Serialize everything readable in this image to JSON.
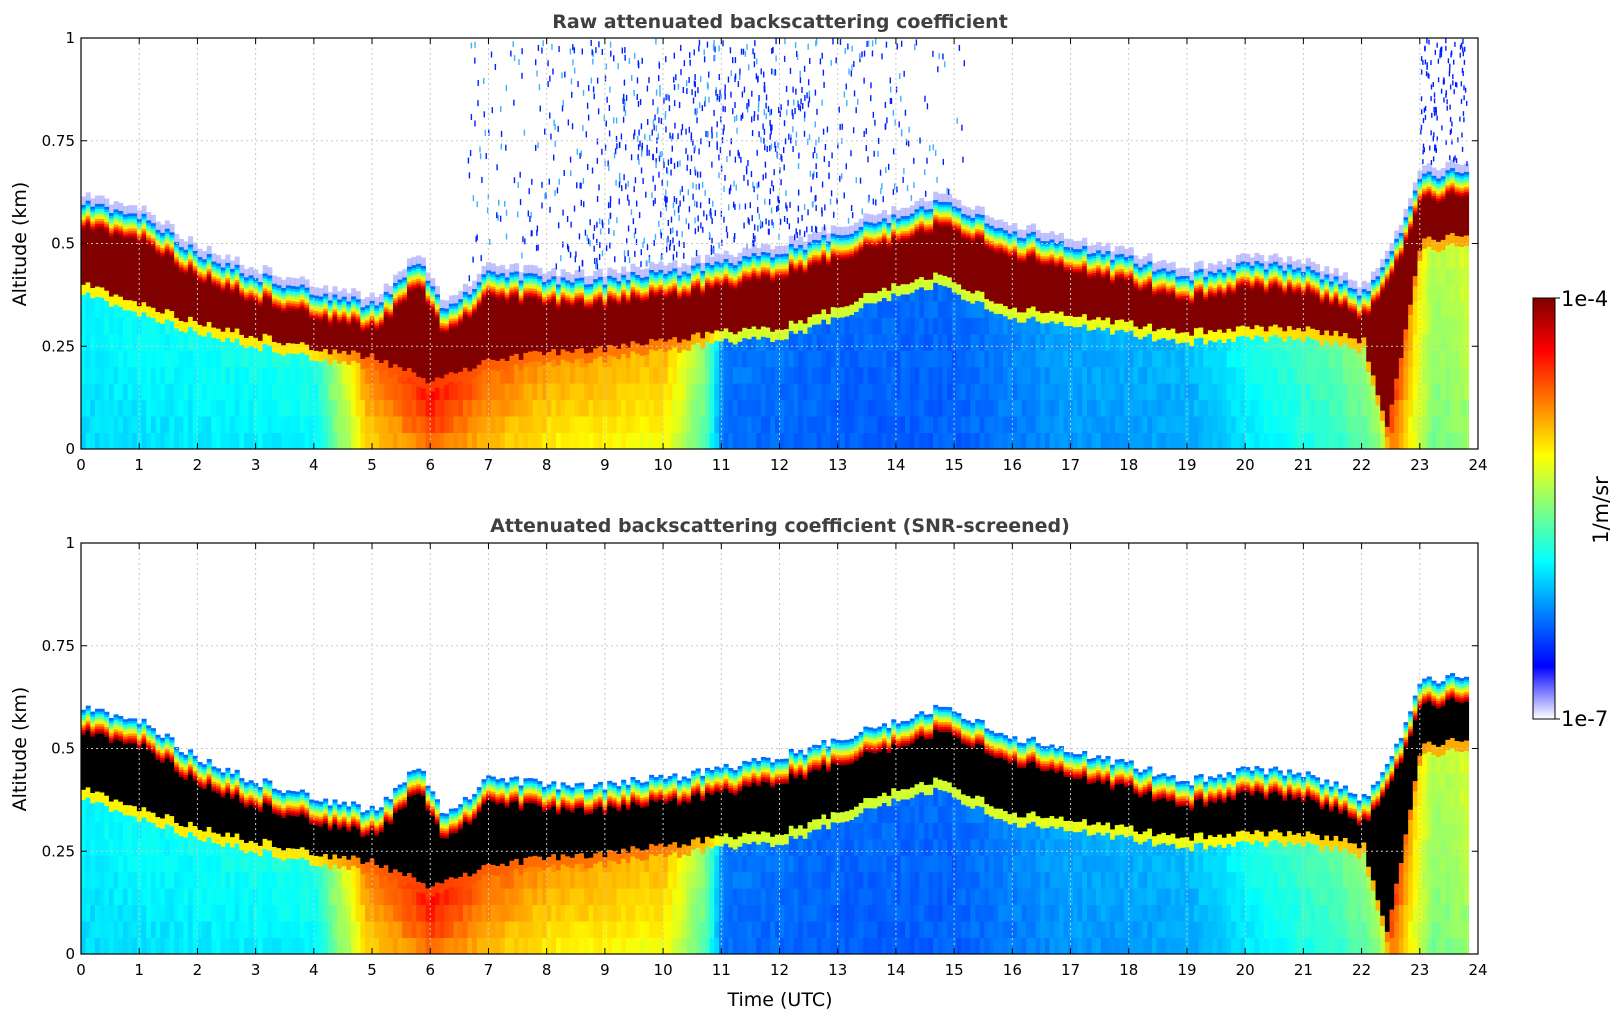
{
  "chart_data": [
    {
      "type": "heatmap",
      "title": "Raw attenuated backscattering coefficient",
      "ylabel": "Altitude (km)",
      "xlabel": "",
      "xlim": [
        0,
        24
      ],
      "ylim": [
        0,
        1
      ],
      "x_ticks": [
        "0",
        "1",
        "2",
        "3",
        "4",
        "5",
        "6",
        "7",
        "8",
        "9",
        "10",
        "11",
        "12",
        "13",
        "14",
        "15",
        "16",
        "17",
        "18",
        "19",
        "20",
        "21",
        "22",
        "23",
        "24"
      ],
      "y_ticks": [
        "0",
        "0.25",
        "0.5",
        "0.75",
        "1"
      ],
      "grid": true,
      "screened": false,
      "layer_top_km": [
        [
          0,
          0.6
        ],
        [
          1,
          0.57
        ],
        [
          2,
          0.47
        ],
        [
          3,
          0.42
        ],
        [
          4,
          0.38
        ],
        [
          5,
          0.35
        ],
        [
          5.8,
          0.46
        ],
        [
          6.2,
          0.33
        ],
        [
          7,
          0.43
        ],
        [
          8,
          0.41
        ],
        [
          9,
          0.41
        ],
        [
          10,
          0.43
        ],
        [
          11,
          0.45
        ],
        [
          12,
          0.48
        ],
        [
          13,
          0.52
        ],
        [
          14,
          0.57
        ],
        [
          14.7,
          0.6
        ],
        [
          15,
          0.59
        ],
        [
          16,
          0.53
        ],
        [
          17,
          0.49
        ],
        [
          18,
          0.46
        ],
        [
          19,
          0.42
        ],
        [
          20,
          0.45
        ],
        [
          21,
          0.44
        ],
        [
          22,
          0.38
        ],
        [
          22.4,
          0.45
        ],
        [
          23,
          0.66
        ],
        [
          23.8,
          0.68
        ]
      ],
      "layer_bottom_km": [
        [
          0,
          0.38
        ],
        [
          1,
          0.33
        ],
        [
          2,
          0.28
        ],
        [
          3,
          0.25
        ],
        [
          4,
          0.22
        ],
        [
          5,
          0.2
        ],
        [
          6,
          0.14
        ],
        [
          7,
          0.19
        ],
        [
          8,
          0.21
        ],
        [
          9,
          0.22
        ],
        [
          10,
          0.24
        ],
        [
          11,
          0.26
        ],
        [
          12,
          0.27
        ],
        [
          13,
          0.32
        ],
        [
          14,
          0.38
        ],
        [
          14.7,
          0.4
        ],
        [
          15,
          0.38
        ],
        [
          16,
          0.32
        ],
        [
          17,
          0.3
        ],
        [
          18,
          0.28
        ],
        [
          19,
          0.26
        ],
        [
          20,
          0.27
        ],
        [
          21,
          0.27
        ],
        [
          22,
          0.24
        ],
        [
          22.4,
          0.02
        ],
        [
          23,
          0.48
        ],
        [
          23.8,
          0.5
        ]
      ],
      "aerosol_intensity_below_layer": [
        [
          0,
          0.28
        ],
        [
          4,
          0.32
        ],
        [
          4.9,
          0.75
        ],
        [
          6,
          0.9
        ],
        [
          7,
          0.78
        ],
        [
          8,
          0.72
        ],
        [
          9,
          0.7
        ],
        [
          10,
          0.68
        ],
        [
          10.7,
          0.45
        ],
        [
          11,
          0.12
        ],
        [
          13,
          0.1
        ],
        [
          15,
          0.1
        ],
        [
          17,
          0.18
        ],
        [
          19,
          0.2
        ],
        [
          20,
          0.3
        ],
        [
          21.5,
          0.4
        ],
        [
          22.3,
          0.5
        ],
        [
          22.5,
          0.85
        ],
        [
          23.2,
          0.5
        ],
        [
          23.8,
          0.55
        ]
      ]
    },
    {
      "type": "heatmap",
      "title": "Attenuated backscattering coefficient (SNR-screened)",
      "ylabel": "Altitude (km)",
      "xlabel": "Time (UTC)",
      "xlim": [
        0,
        24
      ],
      "ylim": [
        0,
        1
      ],
      "x_ticks": [
        "0",
        "1",
        "2",
        "3",
        "4",
        "5",
        "6",
        "7",
        "8",
        "9",
        "10",
        "11",
        "12",
        "13",
        "14",
        "15",
        "16",
        "17",
        "18",
        "19",
        "20",
        "21",
        "22",
        "23",
        "24"
      ],
      "y_ticks": [
        "0",
        "0.25",
        "0.5",
        "0.75",
        "1"
      ],
      "grid": true,
      "screened": true,
      "layer_top_km": [
        [
          0,
          0.6
        ],
        [
          1,
          0.57
        ],
        [
          2,
          0.47
        ],
        [
          3,
          0.42
        ],
        [
          4,
          0.38
        ],
        [
          5,
          0.35
        ],
        [
          5.8,
          0.46
        ],
        [
          6.2,
          0.33
        ],
        [
          7,
          0.43
        ],
        [
          8,
          0.41
        ],
        [
          9,
          0.41
        ],
        [
          10,
          0.43
        ],
        [
          11,
          0.45
        ],
        [
          12,
          0.48
        ],
        [
          13,
          0.52
        ],
        [
          14,
          0.57
        ],
        [
          14.7,
          0.6
        ],
        [
          15,
          0.59
        ],
        [
          16,
          0.53
        ],
        [
          17,
          0.49
        ],
        [
          18,
          0.46
        ],
        [
          19,
          0.42
        ],
        [
          20,
          0.45
        ],
        [
          21,
          0.44
        ],
        [
          22,
          0.38
        ],
        [
          22.4,
          0.45
        ],
        [
          23,
          0.66
        ],
        [
          23.8,
          0.68
        ]
      ],
      "layer_bottom_km": [
        [
          0,
          0.38
        ],
        [
          1,
          0.33
        ],
        [
          2,
          0.28
        ],
        [
          3,
          0.25
        ],
        [
          4,
          0.22
        ],
        [
          5,
          0.2
        ],
        [
          6,
          0.14
        ],
        [
          7,
          0.19
        ],
        [
          8,
          0.21
        ],
        [
          9,
          0.22
        ],
        [
          10,
          0.24
        ],
        [
          11,
          0.26
        ],
        [
          12,
          0.27
        ],
        [
          13,
          0.32
        ],
        [
          14,
          0.38
        ],
        [
          14.7,
          0.4
        ],
        [
          15,
          0.38
        ],
        [
          16,
          0.32
        ],
        [
          17,
          0.3
        ],
        [
          18,
          0.28
        ],
        [
          19,
          0.26
        ],
        [
          20,
          0.27
        ],
        [
          21,
          0.27
        ],
        [
          22,
          0.24
        ],
        [
          22.4,
          0.02
        ],
        [
          23,
          0.48
        ],
        [
          23.8,
          0.5
        ]
      ],
      "aerosol_intensity_below_layer": [
        [
          0,
          0.28
        ],
        [
          4,
          0.32
        ],
        [
          4.9,
          0.75
        ],
        [
          6,
          0.9
        ],
        [
          7,
          0.78
        ],
        [
          8,
          0.72
        ],
        [
          9,
          0.7
        ],
        [
          10,
          0.68
        ],
        [
          10.7,
          0.45
        ],
        [
          11,
          0.12
        ],
        [
          13,
          0.1
        ],
        [
          15,
          0.1
        ],
        [
          17,
          0.18
        ],
        [
          19,
          0.2
        ],
        [
          20,
          0.3
        ],
        [
          21.5,
          0.4
        ],
        [
          22.3,
          0.5
        ],
        [
          22.5,
          0.85
        ],
        [
          23.2,
          0.5
        ],
        [
          23.8,
          0.55
        ]
      ]
    }
  ],
  "colorbar": {
    "max_label": "1e-4",
    "min_label": "1e-7",
    "unit_label": "1/m/sr",
    "colormap": [
      "#ffffff",
      "#0000ff",
      "#0080ff",
      "#00ffff",
      "#80ff80",
      "#ffff00",
      "#ff8000",
      "#ff0000",
      "#800000"
    ]
  },
  "colors": {
    "saturated_raw": "#800000",
    "saturated_screened": "#000000",
    "background": "#ffffff",
    "title": "#404040",
    "grid": "#c8c8c8"
  }
}
